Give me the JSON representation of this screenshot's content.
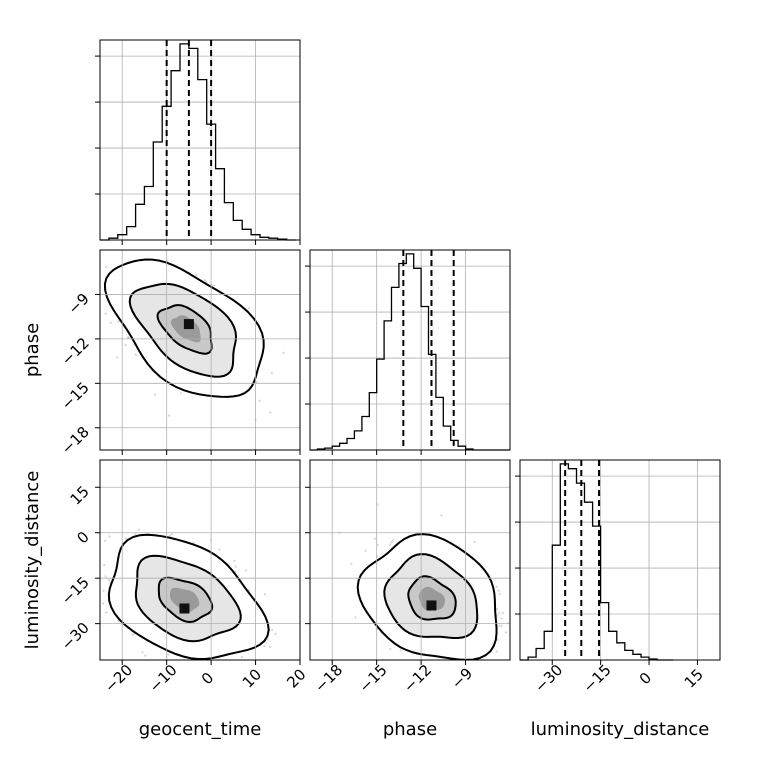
{
  "chart_data": {
    "type": "corner",
    "parameters": [
      "geocent_time",
      "phase",
      "luminosity_distance"
    ],
    "axes": {
      "geocent_time": {
        "xlim": [
          -25,
          20
        ],
        "ticks": [
          -20,
          -10,
          0,
          10,
          20
        ],
        "tick_labels": [
          "−20",
          "−10",
          "0",
          "10",
          "20"
        ]
      },
      "phase": {
        "xlim": [
          -19.5,
          -6
        ],
        "ticks": [
          -18,
          -15,
          -12,
          -9
        ],
        "tick_labels": [
          "−18",
          "−15",
          "−12",
          "−9"
        ]
      },
      "luminosity_distance": {
        "xlim": [
          -40,
          22
        ],
        "ticks": [
          -30,
          -15,
          0,
          15
        ],
        "tick_labels": [
          "−30",
          "−15",
          "0",
          "15"
        ]
      }
    },
    "quantiles": {
      "geocent_time": [
        -10,
        -5,
        0
      ],
      "phase": [
        -13.2,
        -11.3,
        -9.8
      ],
      "luminosity_distance": [
        -26,
        -21,
        -15.5
      ]
    },
    "histograms": {
      "geocent_time": {
        "bin_edges": [
          -25,
          -23,
          -21,
          -19,
          -17,
          -15,
          -13,
          -11,
          -9,
          -7,
          -5,
          -3,
          -1,
          1,
          3,
          5,
          7,
          9,
          11,
          13,
          15,
          17,
          19
        ],
        "counts": [
          0,
          2,
          6,
          15,
          40,
          60,
          110,
          150,
          190,
          220,
          215,
          180,
          130,
          80,
          42,
          22,
          12,
          6,
          3,
          2,
          1,
          0
        ]
      },
      "phase": {
        "bin_edges": [
          -19.5,
          -19.0,
          -18.5,
          -18.0,
          -17.5,
          -17.0,
          -16.5,
          -16.0,
          -15.5,
          -15.0,
          -14.5,
          -14.0,
          -13.5,
          -13.0,
          -12.5,
          -12.0,
          -11.5,
          -11.0,
          -10.5,
          -10.0,
          -9.5,
          -9.0,
          -8.5,
          -8.0,
          -7.5,
          -7.0,
          -6.5,
          -6.0
        ],
        "counts": [
          0,
          1,
          2,
          4,
          7,
          12,
          20,
          35,
          60,
          95,
          135,
          170,
          195,
          205,
          190,
          150,
          100,
          55,
          25,
          10,
          4,
          1,
          0,
          0,
          0,
          0,
          0
        ]
      },
      "luminosity_distance": {
        "bin_edges": [
          -40,
          -37.5,
          -35,
          -32.5,
          -30,
          -27.5,
          -25,
          -22.5,
          -20,
          -17.5,
          -15,
          -12.5,
          -10,
          -7.5,
          -5,
          -2.5,
          0,
          2.5,
          5,
          7.5
        ],
        "counts": [
          0,
          3,
          12,
          30,
          120,
          205,
          200,
          185,
          165,
          140,
          60,
          30,
          18,
          10,
          6,
          3,
          1,
          0,
          0
        ]
      }
    },
    "pairs": [
      {
        "x": "geocent_time",
        "y": "phase",
        "mean": [
          -5.5,
          -11.3
        ],
        "sd": [
          6,
          1.6
        ],
        "corr": -0.5,
        "peak": [
          -5,
          -11
        ]
      },
      {
        "x": "geocent_time",
        "y": "luminosity_distance",
        "mean": [
          -6,
          -22
        ],
        "sd": [
          6,
          7
        ],
        "corr": -0.35,
        "peak": [
          -6,
          -25
        ]
      },
      {
        "x": "phase",
        "y": "luminosity_distance",
        "mean": [
          -11.3,
          -22
        ],
        "sd": [
          1.6,
          7
        ],
        "corr": -0.2,
        "peak": [
          -11.3,
          -24
        ]
      }
    ],
    "levels": [
      "39%",
      "86%",
      "99%"
    ],
    "grid": true
  }
}
